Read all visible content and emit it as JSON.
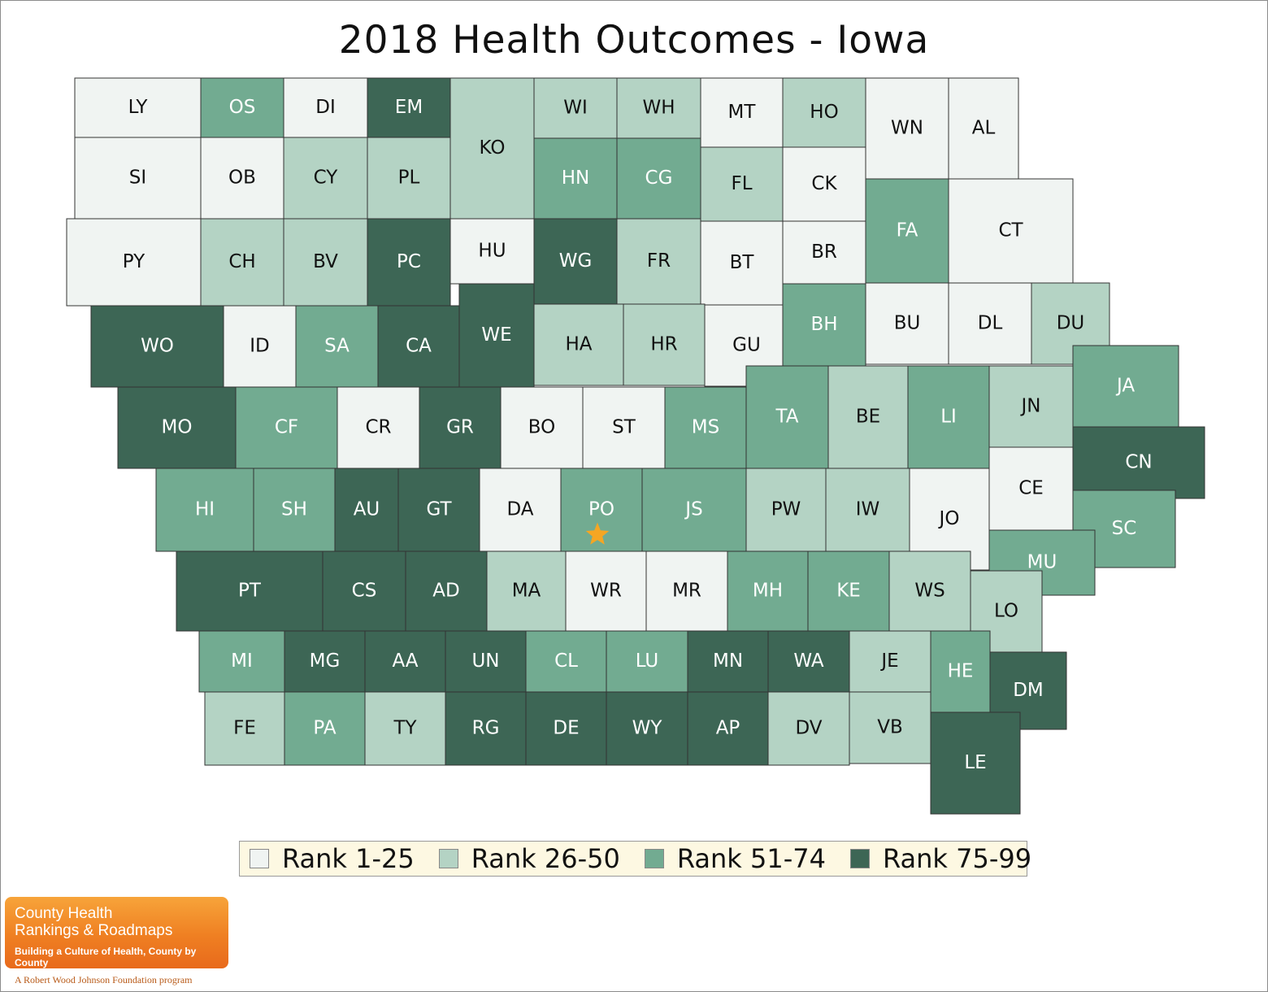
{
  "title": "2018 Health Outcomes - Iowa",
  "colors": {
    "rank_1_25": "#f0f4f2",
    "rank_26_50": "#b4d3c4",
    "rank_51_74": "#72ab91",
    "rank_75_99": "#3d6655",
    "highlight_star": "#f5a623"
  },
  "legend": [
    {
      "label": "Rank 1-25",
      "tier": 1
    },
    {
      "label": "Rank 26-50",
      "tier": 2
    },
    {
      "label": "Rank 51-74",
      "tier": 3
    },
    {
      "label": "Rank 75-99",
      "tier": 4
    }
  ],
  "highlighted_county": "PO",
  "counties": [
    {
      "abbr": "LY",
      "tier": 1
    },
    {
      "abbr": "OS",
      "tier": 3
    },
    {
      "abbr": "DI",
      "tier": 1
    },
    {
      "abbr": "EM",
      "tier": 4
    },
    {
      "abbr": "KO",
      "tier": 2
    },
    {
      "abbr": "WI",
      "tier": 2
    },
    {
      "abbr": "WH",
      "tier": 2
    },
    {
      "abbr": "MT",
      "tier": 1
    },
    {
      "abbr": "HO",
      "tier": 2
    },
    {
      "abbr": "WN",
      "tier": 1
    },
    {
      "abbr": "AL",
      "tier": 1
    },
    {
      "abbr": "SI",
      "tier": 1
    },
    {
      "abbr": "OB",
      "tier": 1
    },
    {
      "abbr": "CY",
      "tier": 2
    },
    {
      "abbr": "PL",
      "tier": 2
    },
    {
      "abbr": "HN",
      "tier": 3
    },
    {
      "abbr": "CG",
      "tier": 3
    },
    {
      "abbr": "FL",
      "tier": 2
    },
    {
      "abbr": "CK",
      "tier": 1
    },
    {
      "abbr": "FA",
      "tier": 3
    },
    {
      "abbr": "CT",
      "tier": 1
    },
    {
      "abbr": "PY",
      "tier": 1
    },
    {
      "abbr": "CH",
      "tier": 2
    },
    {
      "abbr": "BV",
      "tier": 2
    },
    {
      "abbr": "PC",
      "tier": 4
    },
    {
      "abbr": "HU",
      "tier": 1
    },
    {
      "abbr": "WG",
      "tier": 4
    },
    {
      "abbr": "FR",
      "tier": 2
    },
    {
      "abbr": "BT",
      "tier": 1
    },
    {
      "abbr": "BR",
      "tier": 1
    },
    {
      "abbr": "WO",
      "tier": 4
    },
    {
      "abbr": "ID",
      "tier": 1
    },
    {
      "abbr": "SA",
      "tier": 3
    },
    {
      "abbr": "CA",
      "tier": 4
    },
    {
      "abbr": "WE",
      "tier": 4
    },
    {
      "abbr": "HA",
      "tier": 2
    },
    {
      "abbr": "HR",
      "tier": 2
    },
    {
      "abbr": "GU",
      "tier": 1
    },
    {
      "abbr": "BH",
      "tier": 3
    },
    {
      "abbr": "BU",
      "tier": 1
    },
    {
      "abbr": "DL",
      "tier": 1
    },
    {
      "abbr": "DU",
      "tier": 2
    },
    {
      "abbr": "MO",
      "tier": 4
    },
    {
      "abbr": "CF",
      "tier": 3
    },
    {
      "abbr": "CR",
      "tier": 1
    },
    {
      "abbr": "GR",
      "tier": 4
    },
    {
      "abbr": "BO",
      "tier": 1
    },
    {
      "abbr": "ST",
      "tier": 1
    },
    {
      "abbr": "MS",
      "tier": 3
    },
    {
      "abbr": "TA",
      "tier": 3
    },
    {
      "abbr": "BE",
      "tier": 2
    },
    {
      "abbr": "LI",
      "tier": 3
    },
    {
      "abbr": "JN",
      "tier": 2
    },
    {
      "abbr": "JA",
      "tier": 3
    },
    {
      "abbr": "CN",
      "tier": 4
    },
    {
      "abbr": "HI",
      "tier": 3
    },
    {
      "abbr": "SH",
      "tier": 3
    },
    {
      "abbr": "AU",
      "tier": 4
    },
    {
      "abbr": "GT",
      "tier": 4
    },
    {
      "abbr": "DA",
      "tier": 1
    },
    {
      "abbr": "PO",
      "tier": 3
    },
    {
      "abbr": "JS",
      "tier": 3
    },
    {
      "abbr": "PW",
      "tier": 2
    },
    {
      "abbr": "IW",
      "tier": 2
    },
    {
      "abbr": "JO",
      "tier": 1
    },
    {
      "abbr": "CE",
      "tier": 1
    },
    {
      "abbr": "SC",
      "tier": 3
    },
    {
      "abbr": "MU",
      "tier": 3
    },
    {
      "abbr": "PT",
      "tier": 4
    },
    {
      "abbr": "CS",
      "tier": 4
    },
    {
      "abbr": "AD",
      "tier": 4
    },
    {
      "abbr": "MA",
      "tier": 2
    },
    {
      "abbr": "WR",
      "tier": 1
    },
    {
      "abbr": "MR",
      "tier": 1
    },
    {
      "abbr": "MH",
      "tier": 3
    },
    {
      "abbr": "KE",
      "tier": 3
    },
    {
      "abbr": "WS",
      "tier": 2
    },
    {
      "abbr": "LO",
      "tier": 2
    },
    {
      "abbr": "MI",
      "tier": 3
    },
    {
      "abbr": "MG",
      "tier": 4
    },
    {
      "abbr": "AA",
      "tier": 4
    },
    {
      "abbr": "UN",
      "tier": 4
    },
    {
      "abbr": "CL",
      "tier": 3
    },
    {
      "abbr": "LU",
      "tier": 3
    },
    {
      "abbr": "MN",
      "tier": 4
    },
    {
      "abbr": "WA",
      "tier": 4
    },
    {
      "abbr": "JE",
      "tier": 2
    },
    {
      "abbr": "HE",
      "tier": 3
    },
    {
      "abbr": "DM",
      "tier": 4
    },
    {
      "abbr": "FE",
      "tier": 2
    },
    {
      "abbr": "PA",
      "tier": 3
    },
    {
      "abbr": "TY",
      "tier": 2
    },
    {
      "abbr": "RG",
      "tier": 4
    },
    {
      "abbr": "DE",
      "tier": 4
    },
    {
      "abbr": "WY",
      "tier": 4
    },
    {
      "abbr": "AP",
      "tier": 4
    },
    {
      "abbr": "DV",
      "tier": 2
    },
    {
      "abbr": "VB",
      "tier": 2
    },
    {
      "abbr": "LE",
      "tier": 4
    }
  ],
  "logo": {
    "line1": "County Health",
    "line2": "Rankings & Roadmaps",
    "tagline": "Building a Culture of Health, County by County",
    "foundation": "A Robert Wood Johnson Foundation program"
  }
}
